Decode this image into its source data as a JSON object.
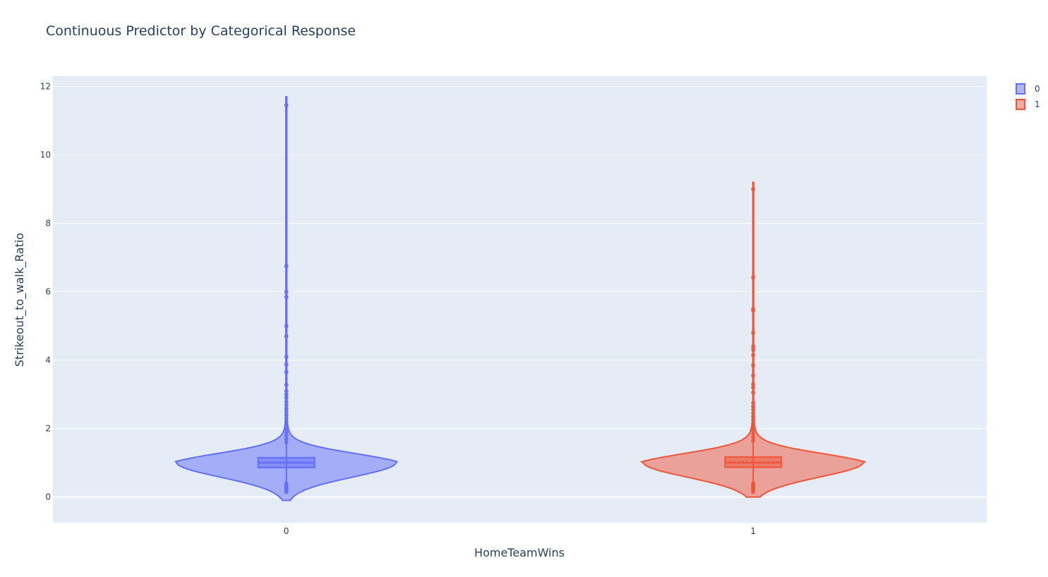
{
  "chart_data": {
    "type": "violin",
    "title": "Continuous Predictor by Categorical Response",
    "xlabel": "HomeTeamWins",
    "ylabel": "Strikeout_to_walk_Ratio",
    "categories": [
      "0",
      "1"
    ],
    "y_ticks": [
      0,
      2,
      4,
      6,
      8,
      10,
      12
    ],
    "ylim": [
      -0.75,
      12.3
    ],
    "grid": true,
    "legend_position": "top-right",
    "series": [
      {
        "name": "0",
        "color": "#636efa",
        "fill": "rgba(99,110,250,0.5)",
        "min": 0.15,
        "q1": 0.86,
        "median": 1.0,
        "mean": 1.02,
        "q3": 1.15,
        "max": 11.45,
        "extent": [
          -0.1,
          11.7
        ],
        "points": [
          11.45,
          6.75,
          6.0,
          5.85,
          5.0,
          4.7,
          4.1,
          3.87,
          3.65,
          3.28,
          3.1,
          3.0,
          2.9,
          2.78,
          2.68,
          2.58,
          2.5,
          2.4,
          2.3,
          2.2,
          2.1,
          2.0,
          1.9,
          1.8,
          1.7,
          1.6,
          0.4,
          0.35,
          0.3,
          0.25,
          0.2,
          0.15
        ]
      },
      {
        "name": "1",
        "color": "#ef553b",
        "fill": "rgba(239,85,59,0.5)",
        "min": 0.15,
        "q1": 0.87,
        "median": 1.0,
        "mean": 1.03,
        "q3": 1.17,
        "max": 9.0,
        "extent": [
          0.0,
          9.2
        ],
        "points": [
          9.0,
          6.42,
          5.5,
          5.45,
          4.8,
          4.4,
          4.3,
          4.15,
          3.85,
          3.55,
          3.3,
          3.2,
          3.05,
          2.75,
          2.65,
          2.55,
          2.45,
          2.35,
          2.25,
          2.15,
          2.05,
          1.95,
          1.85,
          1.75,
          1.65,
          0.4,
          0.35,
          0.3,
          0.25,
          0.2,
          0.15
        ]
      }
    ]
  }
}
